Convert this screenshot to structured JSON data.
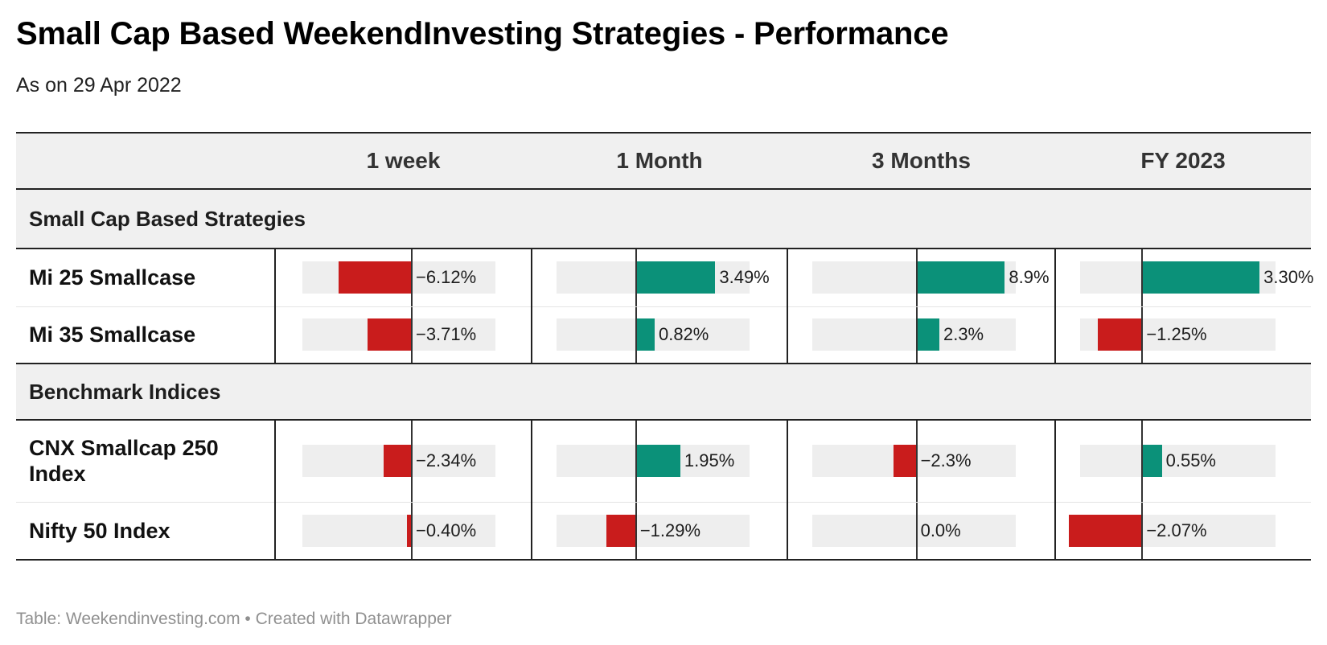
{
  "title": "Small Cap Based WeekendInvesting Strategies - Performance",
  "subtitle": "As on 29 Apr 2022",
  "footer": "Table: Weekendinvesting.com • Created with Datawrapper",
  "colors": {
    "positive": "#0b9179",
    "negative": "#c91c1c",
    "track": "#eeeeee"
  },
  "chart_data": {
    "type": "table",
    "columns": [
      "1 week",
      "1 Month",
      "3 Months",
      "FY 2023"
    ],
    "column_ranges": [
      [
        -9.15,
        7.0
      ],
      [
        -3.5,
        5.0
      ],
      [
        -10.5,
        10.0
      ],
      [
        -1.75,
        3.75
      ]
    ],
    "groups": [
      {
        "name": "Small Cap Based Strategies",
        "rows": [
          {
            "name": "Mi 25 Smallcase",
            "values": [
              -6.12,
              3.49,
              8.9,
              3.3
            ],
            "labels": [
              "−6.12%",
              "3.49%",
              "8.9%",
              "3.30%"
            ]
          },
          {
            "name": "Mi 35 Smallcase",
            "values": [
              -3.71,
              0.82,
              2.3,
              -1.25
            ],
            "labels": [
              "−3.71%",
              "0.82%",
              "2.3%",
              "−1.25%"
            ]
          }
        ]
      },
      {
        "name": "Benchmark Indices",
        "rows": [
          {
            "name": "CNX Smallcap 250 Index",
            "values": [
              -2.34,
              1.95,
              -2.3,
              0.55
            ],
            "labels": [
              "−2.34%",
              "1.95%",
              "−2.3%",
              "0.55%"
            ]
          },
          {
            "name": "Nifty 50 Index",
            "values": [
              -0.4,
              -1.29,
              0.0,
              -2.07
            ],
            "labels": [
              "−0.40%",
              "−1.29%",
              "0.0%",
              "−2.07%"
            ]
          }
        ]
      }
    ]
  }
}
